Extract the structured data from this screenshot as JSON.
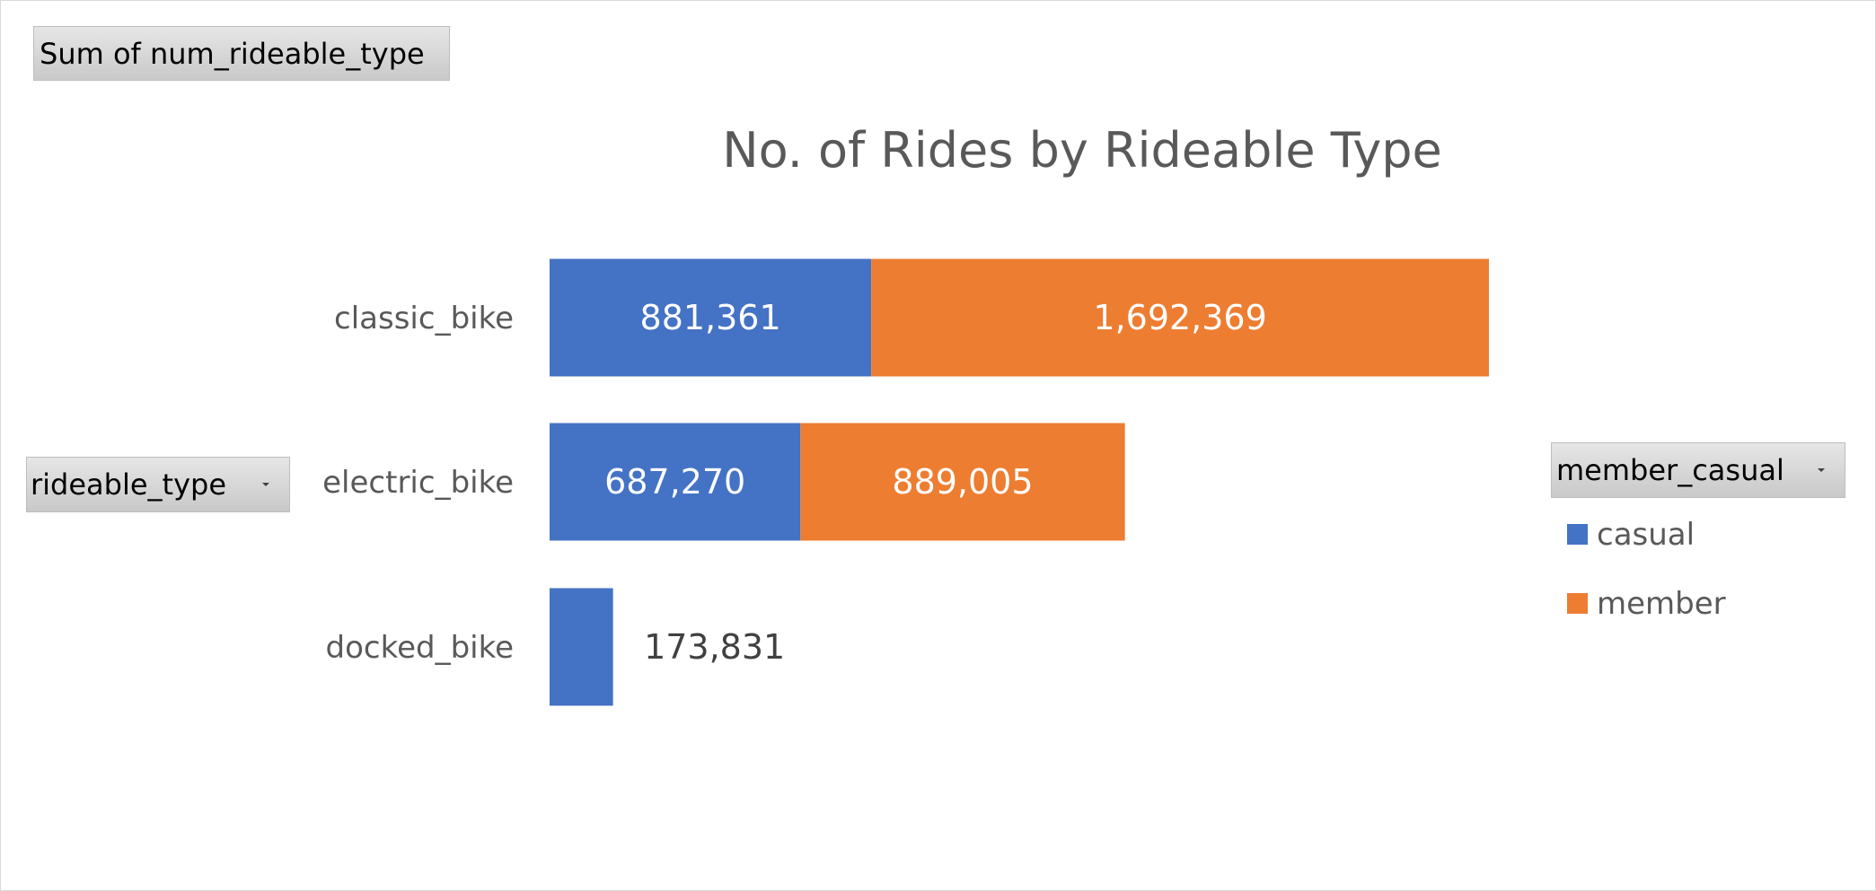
{
  "filters": {
    "values_field": "Sum of num_rideable_type",
    "axis_field": "rideable_type",
    "legend_field": "member_casual"
  },
  "chart_data": {
    "type": "bar",
    "orientation": "horizontal",
    "stacked": true,
    "title": "No. of Rides by Rideable Type",
    "categories": [
      "classic_bike",
      "electric_bike",
      "docked_bike"
    ],
    "series": [
      {
        "name": "casual",
        "color": "#4472C4",
        "values": [
          881361,
          687270,
          173831
        ],
        "labels": [
          "881,361",
          "687,270",
          "173,831"
        ]
      },
      {
        "name": "member",
        "color": "#ED7D31",
        "values": [
          1692369,
          889005,
          0
        ],
        "labels": [
          "1,692,369",
          "889,005",
          ""
        ]
      }
    ],
    "xlim": [
      0,
      2573730
    ],
    "xaxis_visible": false,
    "grid": false,
    "legend_position": "right"
  }
}
